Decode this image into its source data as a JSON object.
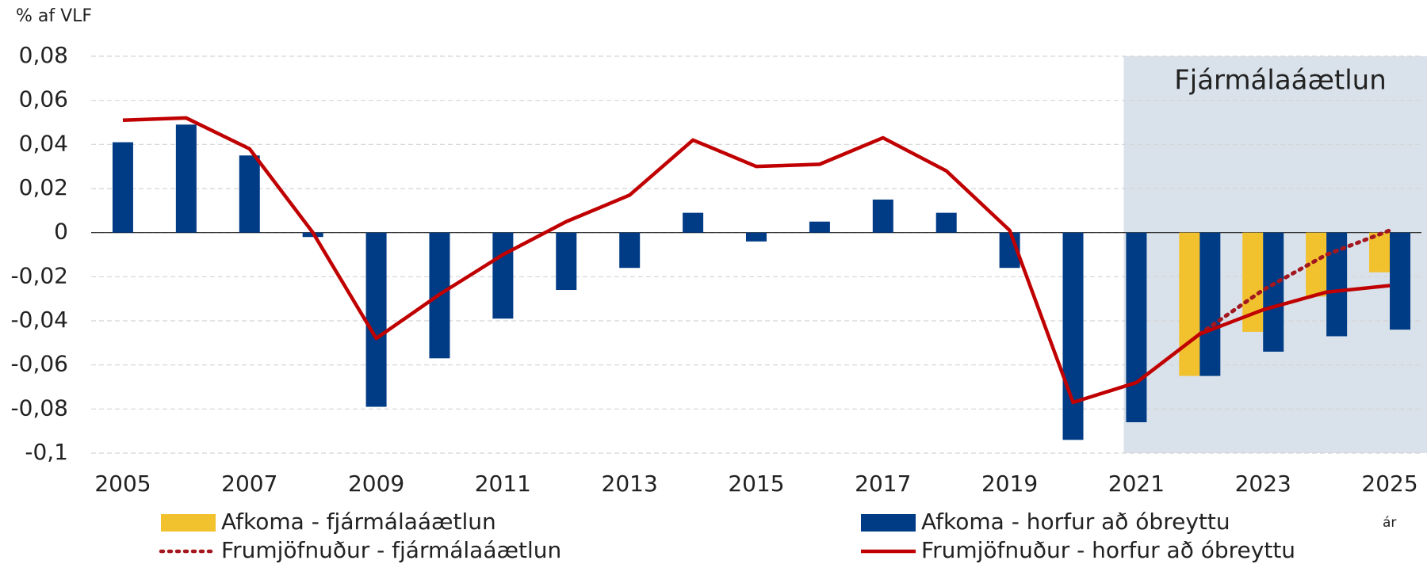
{
  "chart_data": {
    "type": "combo",
    "y_axis_label": "% af VLF",
    "x_axis_label": "ár",
    "annotation": "Fjármálaáætlun",
    "categories": [
      "2005",
      null,
      "2007",
      null,
      "2009",
      null,
      "2011",
      null,
      "2013",
      null,
      "2015",
      null,
      "2017",
      null,
      "2019",
      null,
      "2021",
      null,
      "2023",
      null,
      "2025"
    ],
    "ylim": [
      -0.1,
      0.08
    ],
    "yticks": [
      {
        "value": 0.08,
        "label": "0,08"
      },
      {
        "value": 0.06,
        "label": "0,06"
      },
      {
        "value": 0.04,
        "label": "0,04"
      },
      {
        "value": 0.02,
        "label": "0,02"
      },
      0,
      {
        "value": -0.02,
        "label": "-0,02"
      },
      {
        "value": -0.04,
        "label": "-0,04"
      },
      {
        "value": -0.06,
        "label": "-0,06"
      },
      {
        "value": -0.08,
        "label": "-0,08"
      },
      {
        "value": -0.1,
        "label": "-0,1"
      }
    ],
    "grid": true,
    "series": [
      {
        "name": "Afkoma - fjármálaáætlun",
        "type": "bar",
        "color": "#f2c12e",
        "values": [
          null,
          null,
          null,
          null,
          null,
          null,
          null,
          null,
          null,
          null,
          null,
          null,
          null,
          null,
          null,
          null,
          null,
          -0.065,
          -0.045,
          -0.029,
          -0.018
        ]
      },
      {
        "name": "Afkoma - horfur að óbreyttu",
        "type": "bar",
        "color": "#003c85",
        "values": [
          0.041,
          0.049,
          0.035,
          -0.002,
          -0.079,
          -0.057,
          -0.039,
          -0.026,
          -0.016,
          0.009,
          -0.004,
          0.005,
          0.015,
          0.009,
          -0.016,
          -0.094,
          -0.086,
          -0.065,
          -0.054,
          -0.047,
          -0.044
        ]
      },
      {
        "name": "Frumjöfnuður - fjármálaáætlun",
        "type": "line",
        "dotted": true,
        "color": "#a3171f",
        "values": [
          null,
          null,
          null,
          null,
          null,
          null,
          null,
          null,
          null,
          null,
          null,
          null,
          null,
          null,
          null,
          null,
          null,
          -0.046,
          -0.026,
          -0.01,
          0.001
        ]
      },
      {
        "name": "Frumjöfnuður - horfur að óbreyttu",
        "type": "line",
        "color": "#c00000",
        "values": [
          0.051,
          0.052,
          0.038,
          0.0,
          -0.048,
          -0.028,
          -0.01,
          0.005,
          0.017,
          0.042,
          0.03,
          0.031,
          0.043,
          0.028,
          0.001,
          -0.077,
          -0.068,
          -0.046,
          -0.035,
          -0.027,
          -0.024
        ]
      }
    ]
  }
}
